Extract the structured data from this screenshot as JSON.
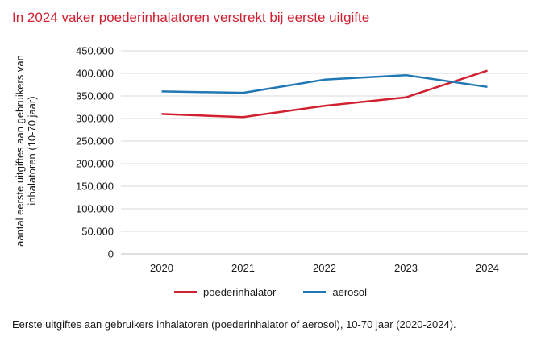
{
  "title": "In 2024 vaker poederinhalatoren verstrekt bij eerste uitgifte",
  "caption": "Eerste uitgiftes aan gebruikers inhalatoren (poederinhalator of aerosol), 10-70 jaar (2020-2024).",
  "chart_data": {
    "type": "line",
    "ylabel": "aantal eerste uitgiftes aan gebruikers van inhalatoren (10-70 jaar)",
    "xlabel": "",
    "categories": [
      "2020",
      "2021",
      "2022",
      "2023",
      "2024"
    ],
    "ylim": [
      0,
      450000
    ],
    "yticks": [
      0,
      50000,
      100000,
      150000,
      200000,
      250000,
      300000,
      350000,
      400000,
      450000
    ],
    "ytick_labels": [
      "0",
      "50.000",
      "100.000",
      "150.000",
      "200.000",
      "250.000",
      "300.000",
      "350.000",
      "400.000",
      "450.000"
    ],
    "grid": true,
    "legend_position": "bottom",
    "series": [
      {
        "name": "poederinhalator",
        "color": "#d1202f",
        "values": [
          310000,
          303000,
          328000,
          347000,
          406000
        ]
      },
      {
        "name": "aerosol",
        "color": "#1f78b4",
        "values": [
          360000,
          357000,
          386000,
          396000,
          370000
        ]
      }
    ]
  }
}
